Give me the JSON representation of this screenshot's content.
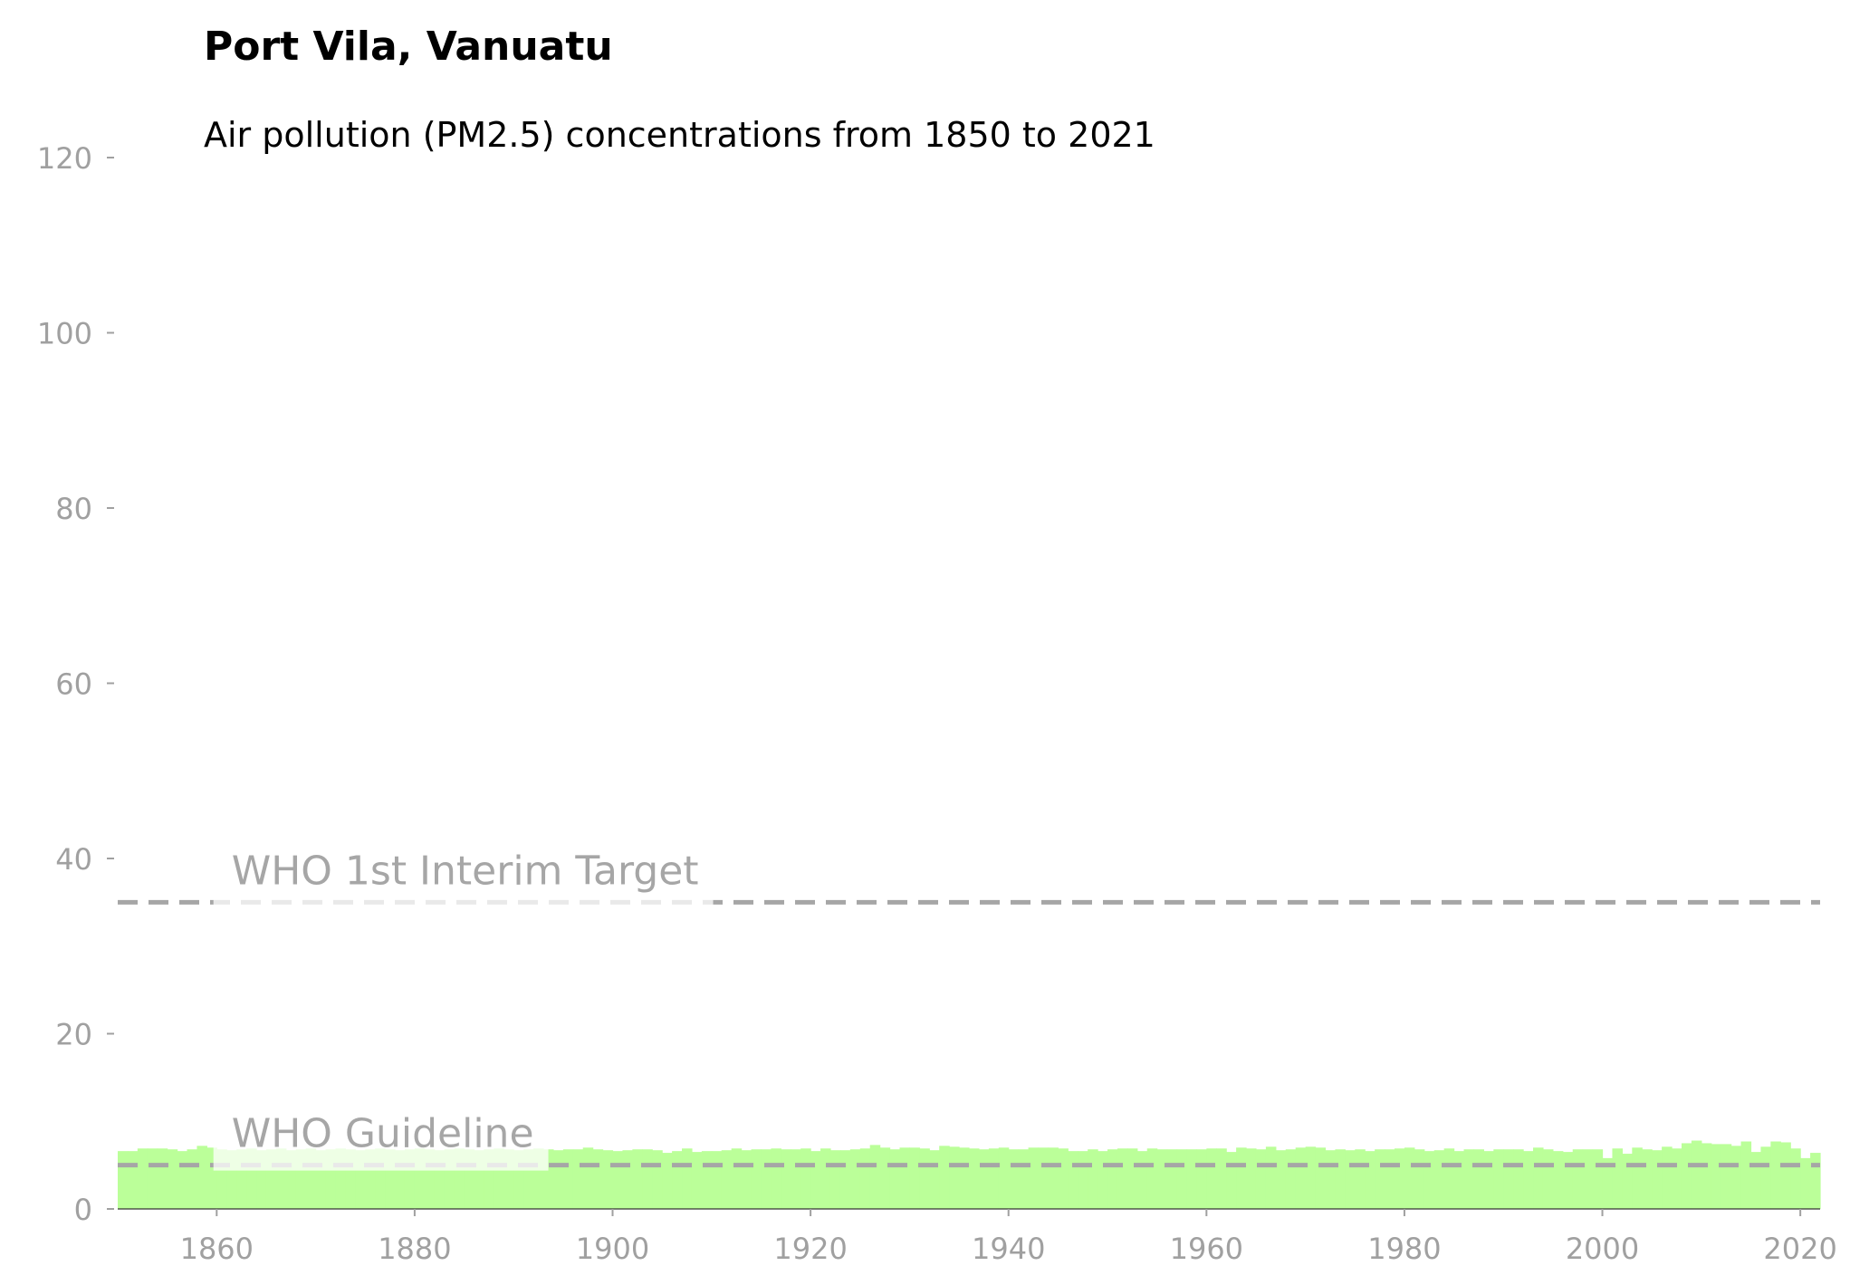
{
  "chart_data": {
    "type": "bar",
    "title": "Port Vila, Vanuatu",
    "subtitle": "Air pollution (PM2.5) concentrations from 1850 to 2021",
    "x": [
      1850,
      1851,
      1852,
      1853,
      1854,
      1855,
      1856,
      1857,
      1858,
      1859,
      1860,
      1861,
      1862,
      1863,
      1864,
      1865,
      1866,
      1867,
      1868,
      1869,
      1870,
      1871,
      1872,
      1873,
      1874,
      1875,
      1876,
      1877,
      1878,
      1879,
      1880,
      1881,
      1882,
      1883,
      1884,
      1885,
      1886,
      1887,
      1888,
      1889,
      1890,
      1891,
      1892,
      1893,
      1894,
      1895,
      1896,
      1897,
      1898,
      1899,
      1900,
      1901,
      1902,
      1903,
      1904,
      1905,
      1906,
      1907,
      1908,
      1909,
      1910,
      1911,
      1912,
      1913,
      1914,
      1915,
      1916,
      1917,
      1918,
      1919,
      1920,
      1921,
      1922,
      1923,
      1924,
      1925,
      1926,
      1927,
      1928,
      1929,
      1930,
      1931,
      1932,
      1933,
      1934,
      1935,
      1936,
      1937,
      1938,
      1939,
      1940,
      1941,
      1942,
      1943,
      1944,
      1945,
      1946,
      1947,
      1948,
      1949,
      1950,
      1951,
      1952,
      1953,
      1954,
      1955,
      1956,
      1957,
      1958,
      1959,
      1960,
      1961,
      1962,
      1963,
      1964,
      1965,
      1966,
      1967,
      1968,
      1969,
      1970,
      1971,
      1972,
      1973,
      1974,
      1975,
      1976,
      1977,
      1978,
      1979,
      1980,
      1981,
      1982,
      1983,
      1984,
      1985,
      1986,
      1987,
      1988,
      1989,
      1990,
      1991,
      1992,
      1993,
      1994,
      1995,
      1996,
      1997,
      1998,
      1999,
      2000,
      2001,
      2002,
      2003,
      2004,
      2005,
      2006,
      2007,
      2008,
      2009,
      2010,
      2011,
      2012,
      2013,
      2014,
      2015,
      2016,
      2017,
      2018,
      2019,
      2020,
      2021
    ],
    "values": [
      6.6,
      6.6,
      6.9,
      6.9,
      6.9,
      6.8,
      6.6,
      6.8,
      7.2,
      7.0,
      6.8,
      6.7,
      6.8,
      6.9,
      6.7,
      6.8,
      6.9,
      6.7,
      6.8,
      6.9,
      6.7,
      6.8,
      6.9,
      6.8,
      6.7,
      6.8,
      6.9,
      6.8,
      6.7,
      6.8,
      6.9,
      6.8,
      6.7,
      6.8,
      6.9,
      6.8,
      6.7,
      6.8,
      6.9,
      6.8,
      6.7,
      6.8,
      6.9,
      6.8,
      6.7,
      6.8,
      6.8,
      7.0,
      6.8,
      6.7,
      6.6,
      6.7,
      6.8,
      6.8,
      6.7,
      6.4,
      6.6,
      6.9,
      6.5,
      6.6,
      6.6,
      6.7,
      6.9,
      6.7,
      6.8,
      6.8,
      6.9,
      6.8,
      6.8,
      6.9,
      6.6,
      6.9,
      6.7,
      6.7,
      6.8,
      6.9,
      7.3,
      7.0,
      6.8,
      7.0,
      7.0,
      6.9,
      6.7,
      7.2,
      7.1,
      7.0,
      6.9,
      6.8,
      6.9,
      7.0,
      6.8,
      6.8,
      7.0,
      7.0,
      7.0,
      6.9,
      6.6,
      6.6,
      6.8,
      6.6,
      6.8,
      6.9,
      6.9,
      6.6,
      6.9,
      6.8,
      6.8,
      6.8,
      6.8,
      6.8,
      6.9,
      6.9,
      6.5,
      7.0,
      6.9,
      6.8,
      7.1,
      6.7,
      6.8,
      7.0,
      7.1,
      7.0,
      6.7,
      6.8,
      6.7,
      6.8,
      6.6,
      6.8,
      6.8,
      6.9,
      7.0,
      6.8,
      6.6,
      6.7,
      6.9,
      6.6,
      6.8,
      6.8,
      6.6,
      6.8,
      6.8,
      6.8,
      6.6,
      7.0,
      6.8,
      6.6,
      6.5,
      6.8,
      6.8,
      6.8,
      5.8,
      6.9,
      6.3,
      7.0,
      6.8,
      6.7,
      7.1,
      6.9,
      7.5,
      7.8,
      7.5,
      7.4,
      7.4,
      7.2,
      7.7,
      6.5,
      7.1,
      7.7,
      7.6,
      6.9,
      5.8,
      6.4
    ],
    "color": "#bbff99",
    "xlim": [
      1850,
      2022
    ],
    "xticks": [
      1860,
      1880,
      1900,
      1920,
      1940,
      1960,
      1980,
      2000,
      2020
    ],
    "ylim": [
      0,
      120
    ],
    "yticks": [
      0,
      20,
      40,
      60,
      80,
      100,
      120
    ],
    "reference_lines": [
      {
        "value": 35,
        "label": "WHO 1st Interim Target",
        "color": "#a6a6a6"
      },
      {
        "value": 5,
        "label": "WHO Guideline",
        "color": "#a6a6a6"
      }
    ]
  }
}
